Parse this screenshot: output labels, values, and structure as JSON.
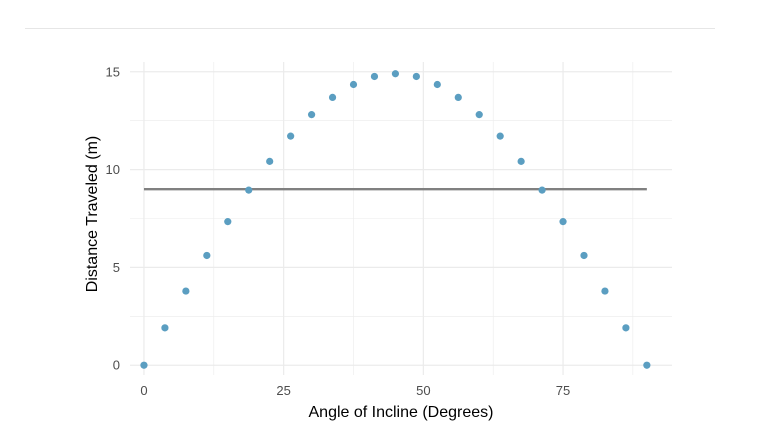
{
  "chart_data": {
    "type": "scatter",
    "xlabel": "Angle of Incline (Degrees)",
    "ylabel": "Distance Traveled (m)",
    "xlim": [
      -2.5,
      94.5
    ],
    "ylim": [
      -0.5,
      15.5
    ],
    "xticks": [
      0,
      25,
      50,
      75
    ],
    "yticks": [
      0,
      5,
      10,
      15
    ],
    "grid": true,
    "legend": "none",
    "colors": {
      "points": "#5b9ec1",
      "line": "#808080",
      "grid": "#ebebeb"
    },
    "x": [
      0,
      3.75,
      7.5,
      11.25,
      15,
      18.75,
      22.5,
      26.25,
      30,
      33.75,
      37.5,
      41.25,
      45,
      48.75,
      52.5,
      56.25,
      60,
      63.75,
      67.5,
      71.25,
      75,
      78.75,
      82.5,
      86.25,
      90
    ],
    "y": [
      0,
      1.91,
      3.79,
      5.61,
      7.34,
      8.95,
      10.42,
      11.71,
      12.81,
      13.69,
      14.35,
      14.76,
      14.9,
      14.76,
      14.35,
      13.69,
      12.81,
      11.71,
      10.42,
      8.95,
      7.34,
      5.61,
      3.79,
      1.91,
      0
    ],
    "hline": {
      "y": 9,
      "x_start": 0,
      "x_end": 90
    }
  }
}
